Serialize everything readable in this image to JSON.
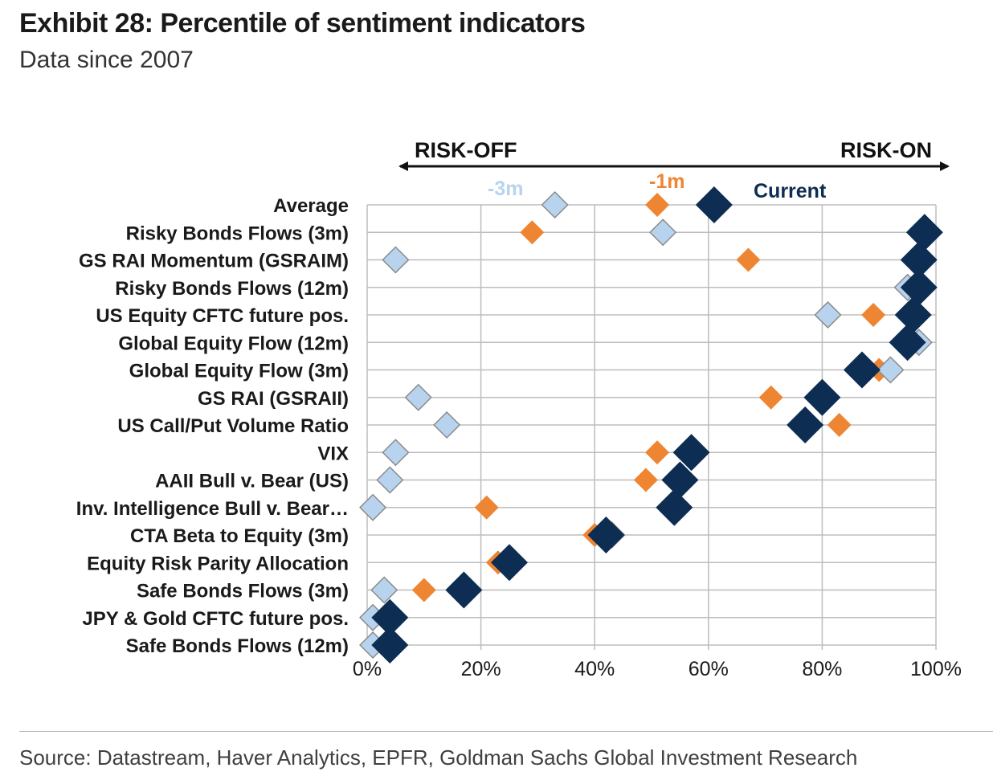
{
  "title": "Exhibit 28: Percentile of sentiment indicators",
  "subtitle": "Data since 2007",
  "source": "Source: Datastream, Haver Analytics, EPFR, Goldman Sachs Global Investment Research",
  "chart_data": {
    "type": "scatter",
    "orientation": "horizontal",
    "direction_labels": {
      "left": "RISK-OFF",
      "right": "RISK-ON"
    },
    "xlim": [
      0,
      100
    ],
    "x_ticks": [
      "0%",
      "20%",
      "40%",
      "60%",
      "80%",
      "100%"
    ],
    "grid": true,
    "categories": [
      "Average",
      "Risky Bonds Flows (3m)",
      "GS RAI Momentum (GSRAIM)",
      "Risky Bonds Flows (12m)",
      "US Equity CFTC future pos.",
      "Global Equity Flow (12m)",
      "Global Equity Flow (3m)",
      "GS RAI (GSRAII)",
      "US Call/Put Volume Ratio",
      "VIX",
      "AAII Bull v. Bear (US)",
      "Inv. Intelligence Bull v. Bear…",
      "CTA Beta to Equity (3m)",
      "Equity Risk Parity Allocation",
      "Safe Bonds Flows (3m)",
      "JPY & Gold CFTC future pos.",
      "Safe Bonds Flows (12m)"
    ],
    "series": [
      {
        "name": "-3m",
        "color": "#b8d3ee",
        "marker": "diamond",
        "values": [
          33,
          52,
          5,
          95,
          81,
          97,
          92,
          9,
          14,
          5,
          4,
          1,
          43,
          25,
          3,
          1,
          1
        ]
      },
      {
        "name": "-1m",
        "color": "#ee8533",
        "marker": "diamond",
        "values": [
          51,
          29,
          67,
          96,
          89,
          95,
          90,
          71,
          83,
          51,
          49,
          21,
          40,
          23,
          10,
          5,
          3
        ]
      },
      {
        "name": "Current",
        "color": "#0e2d52",
        "marker": "diamond",
        "values": [
          61,
          98,
          97,
          97,
          96,
          95,
          87,
          80,
          77,
          57,
          55,
          54,
          42,
          25,
          17,
          4,
          4
        ]
      }
    ]
  }
}
